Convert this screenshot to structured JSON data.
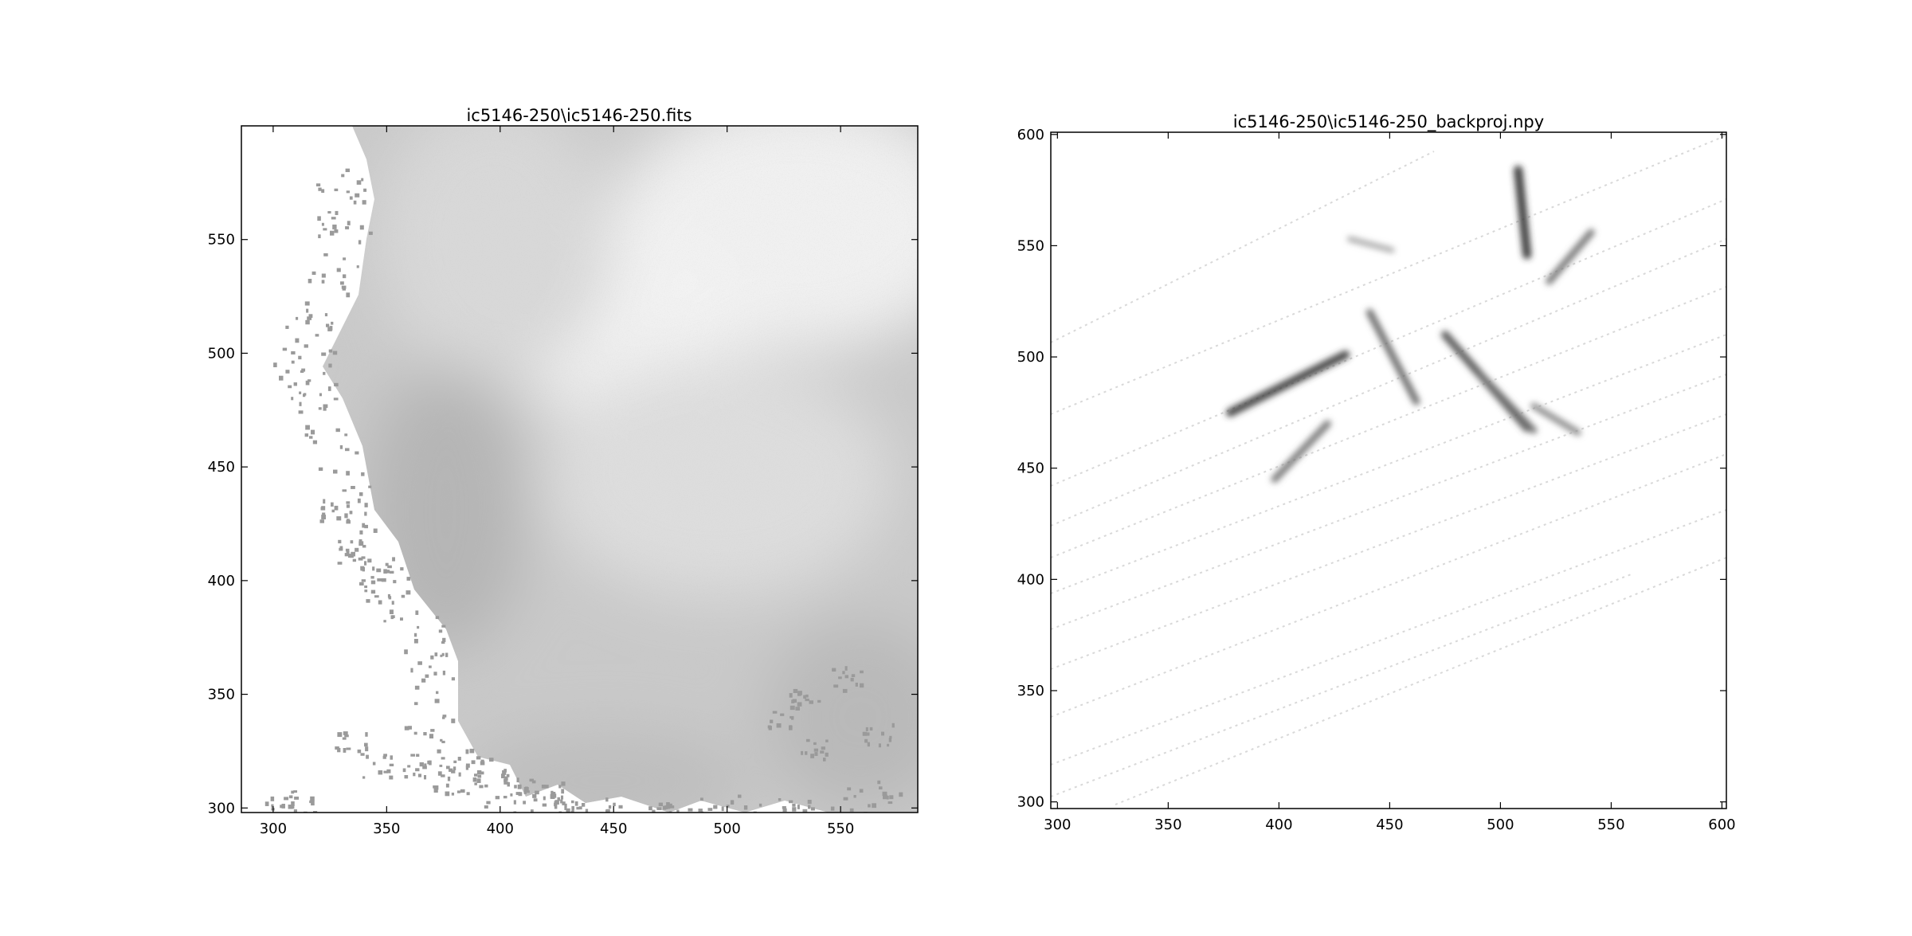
{
  "figure": {
    "background": "#ffffff"
  },
  "chart_data": [
    {
      "type": "heatmap",
      "title": "ic5146-250\\ic5146-250.fits",
      "colormap": "grayscale",
      "colors": {
        "background": "#ffffff",
        "dark": "#8f8f8f",
        "light": "#f2f2f2"
      },
      "xlim": [
        286,
        584
      ],
      "ylim": [
        298,
        600
      ],
      "x_ticks": [
        300,
        350,
        400,
        450,
        500,
        550
      ],
      "y_ticks": [
        300,
        350,
        400,
        450,
        500,
        550
      ],
      "x_tick_labels": [
        "300",
        "350",
        "400",
        "450",
        "500",
        "550"
      ],
      "y_tick_labels": [
        "300",
        "350",
        "400",
        "450",
        "500",
        "550"
      ],
      "xlabel": "",
      "ylabel": "",
      "grid": false,
      "description_regions": {
        "blank_region": "left and lower-left area (no data, white)",
        "brightest_area": "around x 440-510, y 480-560"
      }
    },
    {
      "type": "heatmap",
      "title": "ic5146-250\\ic5146-250_backproj.npy",
      "colormap": "gray_r",
      "colors": {
        "background": "#ffffff",
        "streak": "#2b2b2b",
        "faint": "#d9d9d9"
      },
      "xlim": [
        297,
        602
      ],
      "ylim": [
        297,
        601
      ],
      "x_ticks": [
        300,
        350,
        400,
        450,
        500,
        550,
        600
      ],
      "y_ticks": [
        300,
        350,
        400,
        450,
        500,
        550,
        600
      ],
      "x_tick_labels": [
        "300",
        "350",
        "400",
        "450",
        "500",
        "550",
        "600"
      ],
      "y_tick_labels": [
        "300",
        "350",
        "400",
        "450",
        "500",
        "550",
        "600"
      ],
      "xlabel": "",
      "ylabel": "",
      "grid": false,
      "features": [
        {
          "x": [
            378,
            430
          ],
          "y": [
            475,
            501
          ],
          "strength": 0.85
        },
        {
          "x": [
            398,
            422
          ],
          "y": [
            445,
            470
          ],
          "strength": 0.6
        },
        {
          "x": [
            441,
            462
          ],
          "y": [
            520,
            480
          ],
          "strength": 0.65
        },
        {
          "x": [
            475,
            512
          ],
          "y": [
            510,
            468
          ],
          "strength": 0.75
        },
        {
          "x": [
            508,
            512
          ],
          "y": [
            584,
            546
          ],
          "strength": 0.9
        },
        {
          "x": [
            522,
            541
          ],
          "y": [
            534,
            556
          ],
          "strength": 0.6
        },
        {
          "x": [
            491,
            515
          ],
          "y": [
            492,
            467
          ],
          "strength": 0.6
        },
        {
          "x": [
            515,
            535
          ],
          "y": [
            478,
            466
          ],
          "strength": 0.5
        },
        {
          "x": [
            432,
            451
          ],
          "y": [
            553,
            548
          ],
          "strength": 0.35
        }
      ]
    }
  ]
}
